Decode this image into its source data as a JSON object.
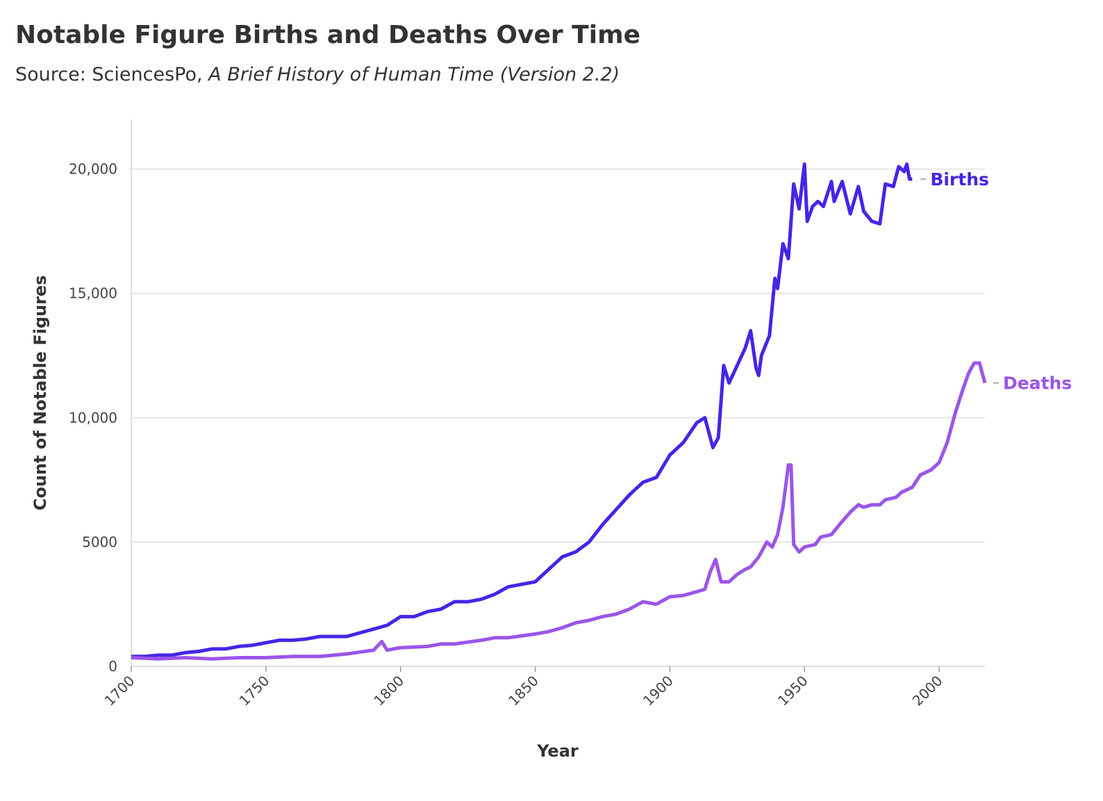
{
  "chart_data": {
    "type": "line",
    "title": "Notable Figure Births and Deaths Over Time",
    "subtitle": [
      "Source: SciencesPo,",
      "A Brief History of Human Time (Version 2.2)"
    ],
    "x_label": "Year",
    "y_label": "Count of Notable Figures",
    "xlim": [
      1700,
      2017
    ],
    "xticks": [
      1700,
      1750,
      1800,
      1850,
      1900,
      1950,
      2000
    ],
    "ylim": [
      0,
      22000
    ],
    "yticks": [
      0,
      5000,
      {
        "value": 10000,
        "label": "10,000"
      },
      {
        "value": 15000,
        "label": "15,000"
      },
      {
        "value": 20000,
        "label": "20,000"
      }
    ],
    "grid": true,
    "series": [
      {
        "name": "Births",
        "color": "#4227e6",
        "x": [
          1700,
          1705,
          1710,
          1715,
          1720,
          1725,
          1730,
          1735,
          1740,
          1745,
          1750,
          1755,
          1760,
          1765,
          1770,
          1775,
          1780,
          1785,
          1790,
          1795,
          1800,
          1805,
          1810,
          1815,
          1820,
          1825,
          1830,
          1835,
          1840,
          1845,
          1850,
          1855,
          1860,
          1865,
          1870,
          1875,
          1880,
          1885,
          1890,
          1895,
          1900,
          1905,
          1910,
          1913,
          1916,
          1918,
          1920,
          1922,
          1925,
          1928,
          1930,
          1932,
          1933,
          1934,
          1937,
          1939,
          1940,
          1942,
          1944,
          1946,
          1948,
          1950,
          1951,
          1953,
          1955,
          1957,
          1960,
          1961,
          1964,
          1967,
          1970,
          1972,
          1975,
          1978,
          1980,
          1983,
          1985,
          1987,
          1988,
          1989,
          1990
        ],
        "values": [
          400,
          400,
          450,
          450,
          550,
          600,
          700,
          700,
          800,
          850,
          950,
          1050,
          1050,
          1100,
          1200,
          1200,
          1200,
          1350,
          1500,
          1650,
          2000,
          2000,
          2200,
          2300,
          2600,
          2600,
          2700,
          2900,
          3200,
          3300,
          3400,
          3900,
          4400,
          4600,
          5000,
          5700,
          6300,
          6900,
          7400,
          7600,
          8500,
          9000,
          9800,
          10000,
          8800,
          9200,
          12100,
          11400,
          12100,
          12800,
          13500,
          12000,
          11700,
          12500,
          13300,
          15600,
          15200,
          17000,
          16400,
          19400,
          18400,
          20200,
          17900,
          18500,
          18700,
          18500,
          19500,
          18700,
          19500,
          18200,
          19300,
          18300,
          17900,
          17800,
          19400,
          19300,
          20100,
          19900,
          20200,
          19600,
          19600
        ]
      },
      {
        "name": "Deaths",
        "color": "#9b55e8",
        "x": [
          1700,
          1710,
          1720,
          1730,
          1740,
          1750,
          1760,
          1770,
          1780,
          1790,
          1793,
          1795,
          1800,
          1810,
          1815,
          1820,
          1830,
          1835,
          1840,
          1850,
          1855,
          1860,
          1865,
          1870,
          1875,
          1880,
          1885,
          1890,
          1895,
          1900,
          1905,
          1910,
          1913,
          1915,
          1917,
          1919,
          1922,
          1925,
          1928,
          1930,
          1933,
          1936,
          1938,
          1940,
          1942,
          1944,
          1945,
          1946,
          1948,
          1950,
          1954,
          1956,
          1960,
          1963,
          1967,
          1970,
          1972,
          1975,
          1978,
          1980,
          1984,
          1986,
          1990,
          1993,
          1997,
          2000,
          2003,
          2006,
          2009,
          2011,
          2013,
          2015,
          2017
        ],
        "values": [
          350,
          300,
          350,
          300,
          350,
          350,
          400,
          400,
          500,
          650,
          1000,
          650,
          750,
          800,
          900,
          900,
          1050,
          1150,
          1150,
          1300,
          1400,
          1550,
          1750,
          1850,
          2000,
          2100,
          2300,
          2600,
          2500,
          2800,
          2850,
          3000,
          3100,
          3800,
          4300,
          3400,
          3400,
          3700,
          3900,
          4000,
          4400,
          5000,
          4800,
          5300,
          6400,
          8100,
          8100,
          4900,
          4600,
          4800,
          4900,
          5200,
          5300,
          5700,
          6200,
          6500,
          6400,
          6500,
          6500,
          6700,
          6800,
          7000,
          7200,
          7700,
          7900,
          8200,
          9000,
          10200,
          11200,
          11800,
          12200,
          12200,
          11400
        ]
      }
    ]
  }
}
